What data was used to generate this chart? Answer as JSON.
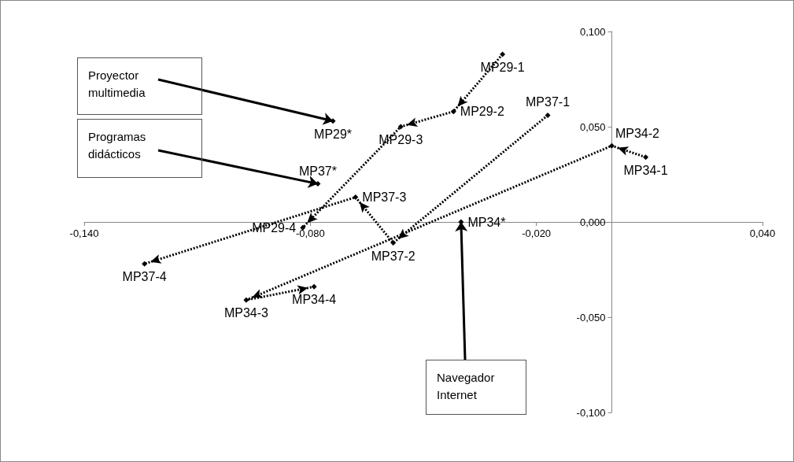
{
  "chart_data": {
    "type": "line",
    "xlim": [
      -0.14,
      0.04
    ],
    "ylim": [
      -0.1,
      0.1
    ],
    "xticks": [
      {
        "value": -0.14,
        "label": "-0,140"
      },
      {
        "value": -0.08,
        "label": "-0,080"
      },
      {
        "value": -0.02,
        "label": "-0,020"
      },
      {
        "value": 0.04,
        "label": "0,040"
      }
    ],
    "yticks": [
      {
        "value": -0.1,
        "label": "-0,100"
      },
      {
        "value": -0.05,
        "label": "-0,050"
      },
      {
        "value": 0,
        "label": "0,000"
      },
      {
        "value": 0.05,
        "label": "0,050"
      },
      {
        "value": 0.1,
        "label": "0,100"
      }
    ],
    "marker": "diamond",
    "line_style": "dotted",
    "series": [
      {
        "color": "#000000",
        "x": [
          -0.029,
          -0.042,
          -0.056,
          -0.082
        ],
        "values": [
          0.088,
          0.058,
          0.05,
          -0.003
        ],
        "value_labels": [
          "MP29-1",
          "MP29-2",
          "MP29-3",
          "MP29-4"
        ]
      },
      {
        "color": "#000000",
        "x": [
          -0.017,
          -0.058,
          -0.068,
          -0.124
        ],
        "values": [
          0.056,
          -0.011,
          0.013,
          -0.022
        ],
        "value_labels": [
          "MP37-1",
          "MP37-2",
          "MP37-3",
          "MP37-4"
        ]
      },
      {
        "color": "#000000",
        "x": [
          0.009,
          0.0,
          -0.097,
          -0.079
        ],
        "values": [
          0.034,
          0.04,
          -0.041,
          -0.034
        ],
        "value_labels": [
          "MP34-1",
          "MP34-2",
          "MP34-3",
          "MP34-4"
        ]
      },
      {
        "type": "scatter",
        "color": "#000000",
        "x": [
          -0.074,
          -0.078,
          -0.04
        ],
        "values": [
          0.053,
          0.02,
          0.0
        ],
        "value_labels": [
          "MP29*",
          "MP37*",
          "MP34*"
        ]
      }
    ],
    "annotations": [
      {
        "text": "Proyector multimedia",
        "x": -0.074,
        "y": 0.053
      },
      {
        "text": "Programas didácticos",
        "x": -0.078,
        "y": 0.02
      },
      {
        "text": "Navegador Internet",
        "x": -0.04,
        "y": 0.0
      }
    ]
  }
}
